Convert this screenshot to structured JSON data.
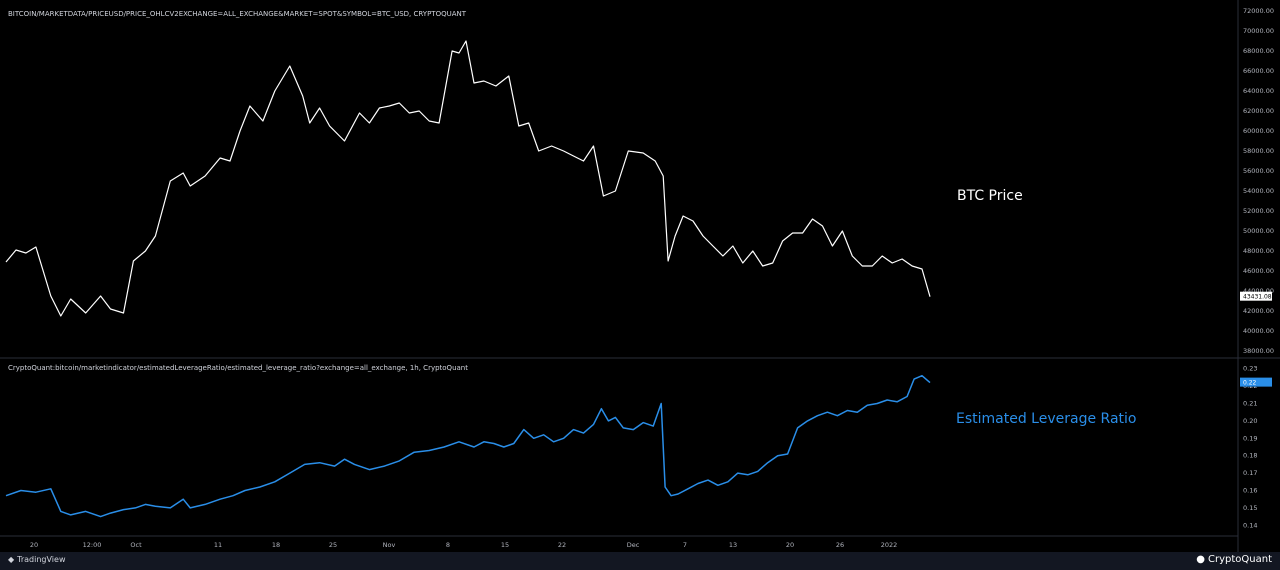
{
  "header": {
    "price_source": "BITCOIN/MARKETDATA/PRICEUSD/PRICE_OHLCV2EXCHANGE=ALL_EXCHANGE&MARKET=SPOT&SYMBOL=BTC_USD, CRYPTOQUANT",
    "indicator_source": "CryptoQuant:bitcoin/marketindicator/estimatedLeverageRatio/estimated_leverage_ratio?exchange=all_exchange, 1h, CryptoQuant"
  },
  "annotations": {
    "price": "BTC Price",
    "leverage": "Estimated Leverage Ratio"
  },
  "footer": {
    "tradingview": "TradingView",
    "cryptoquant": "CryptoQuant"
  },
  "colors": {
    "price_line": "#ffffff",
    "leverage_line": "#2a8ee8",
    "background": "#000000"
  },
  "chart_data": [
    {
      "type": "line",
      "title": "",
      "ylim": [
        37500,
        72500
      ],
      "y_ticks": [
        "38000.00",
        "40000.00",
        "42000.00",
        "44000.00",
        "46000.00",
        "48000.00",
        "50000.00",
        "52000.00",
        "54000.00",
        "56000.00",
        "58000.00",
        "60000.00",
        "62000.00",
        "64000.00",
        "66000.00",
        "68000.00",
        "70000.00",
        "72000.00"
      ],
      "last_value_label": "43431.08",
      "series": [
        {
          "name": "",
          "x": [
            0,
            10,
            20,
            30,
            45,
            55,
            65,
            80,
            95,
            105,
            118,
            128,
            140,
            150,
            165,
            178,
            185,
            200,
            215,
            225,
            235,
            245,
            258,
            270,
            285,
            298,
            305,
            315,
            325,
            340,
            355,
            365,
            375,
            385,
            395,
            405,
            415,
            425,
            435,
            448,
            455,
            462,
            470,
            480,
            492,
            505,
            515,
            525,
            535,
            548,
            560,
            570,
            580,
            590,
            600,
            612,
            625,
            640,
            652,
            660,
            665,
            672,
            680,
            690,
            700,
            710,
            720,
            730,
            740,
            750,
            760,
            770,
            780,
            790,
            800,
            810,
            820,
            830,
            840,
            850,
            860,
            870,
            880,
            890,
            900,
            910,
            920,
            928
          ],
          "values": [
            46900,
            48100,
            47800,
            48400,
            43500,
            41500,
            43200,
            41800,
            43500,
            42200,
            41800,
            47000,
            48000,
            49500,
            55000,
            55800,
            54500,
            55500,
            57300,
            57000,
            60000,
            62500,
            61000,
            64000,
            66500,
            63500,
            60800,
            62300,
            60500,
            59000,
            61800,
            60800,
            62300,
            62500,
            62800,
            61800,
            62000,
            61000,
            60800,
            68000,
            67800,
            69000,
            64800,
            65000,
            64500,
            65500,
            60500,
            60800,
            58000,
            58500,
            58000,
            57500,
            57000,
            58500,
            53500,
            54000,
            58000,
            57800,
            57000,
            55500,
            47000,
            49500,
            51500,
            51000,
            49500,
            48500,
            47500,
            48500,
            46800,
            48000,
            46500,
            46800,
            49000,
            49800,
            49800,
            51200,
            50500,
            48500,
            50000,
            47500,
            46500,
            46500,
            47500,
            46800,
            47200,
            46500,
            46200,
            43431
          ],
          "x_tick_labels": [
            "20",
            "12:00",
            "Oct",
            "11",
            "18",
            "25",
            "Nov",
            "8",
            "15",
            "22",
            "Dec",
            "7",
            "13",
            "20",
            "26",
            "2022"
          ]
        }
      ]
    },
    {
      "type": "line",
      "title": "",
      "ylim": [
        0.135,
        0.235
      ],
      "y_ticks": [
        "0.14",
        "0.15",
        "0.16",
        "0.17",
        "0.18",
        "0.19",
        "0.20",
        "0.21",
        "0.22",
        "0.23"
      ],
      "last_value_label": "0.22",
      "series": [
        {
          "name": "",
          "x": [
            0,
            15,
            30,
            45,
            55,
            65,
            80,
            95,
            105,
            118,
            130,
            140,
            150,
            165,
            178,
            185,
            200,
            215,
            228,
            240,
            255,
            270,
            285,
            300,
            315,
            330,
            340,
            350,
            365,
            380,
            395,
            410,
            425,
            440,
            455,
            470,
            480,
            490,
            500,
            510,
            520,
            530,
            540,
            550,
            560,
            570,
            580,
            590,
            598,
            605,
            612,
            620,
            630,
            640,
            650,
            658,
            662,
            668,
            675,
            685,
            695,
            705,
            715,
            725,
            735,
            745,
            755,
            765,
            775,
            785,
            795,
            805,
            815,
            825,
            835,
            845,
            855,
            865,
            875,
            885,
            895,
            905,
            912,
            920,
            928
          ],
          "values": [
            0.157,
            0.16,
            0.159,
            0.161,
            0.148,
            0.146,
            0.148,
            0.145,
            0.147,
            0.149,
            0.15,
            0.152,
            0.151,
            0.15,
            0.155,
            0.15,
            0.152,
            0.155,
            0.157,
            0.16,
            0.162,
            0.165,
            0.17,
            0.175,
            0.176,
            0.174,
            0.178,
            0.175,
            0.172,
            0.174,
            0.177,
            0.182,
            0.183,
            0.185,
            0.188,
            0.185,
            0.188,
            0.187,
            0.185,
            0.187,
            0.195,
            0.19,
            0.192,
            0.188,
            0.19,
            0.195,
            0.193,
            0.198,
            0.207,
            0.2,
            0.202,
            0.196,
            0.195,
            0.199,
            0.197,
            0.21,
            0.162,
            0.157,
            0.158,
            0.161,
            0.164,
            0.166,
            0.163,
            0.165,
            0.17,
            0.169,
            0.171,
            0.176,
            0.18,
            0.181,
            0.196,
            0.2,
            0.203,
            0.205,
            0.203,
            0.206,
            0.205,
            0.209,
            0.21,
            0.212,
            0.211,
            0.214,
            0.224,
            0.226,
            0.222
          ]
        }
      ]
    }
  ]
}
